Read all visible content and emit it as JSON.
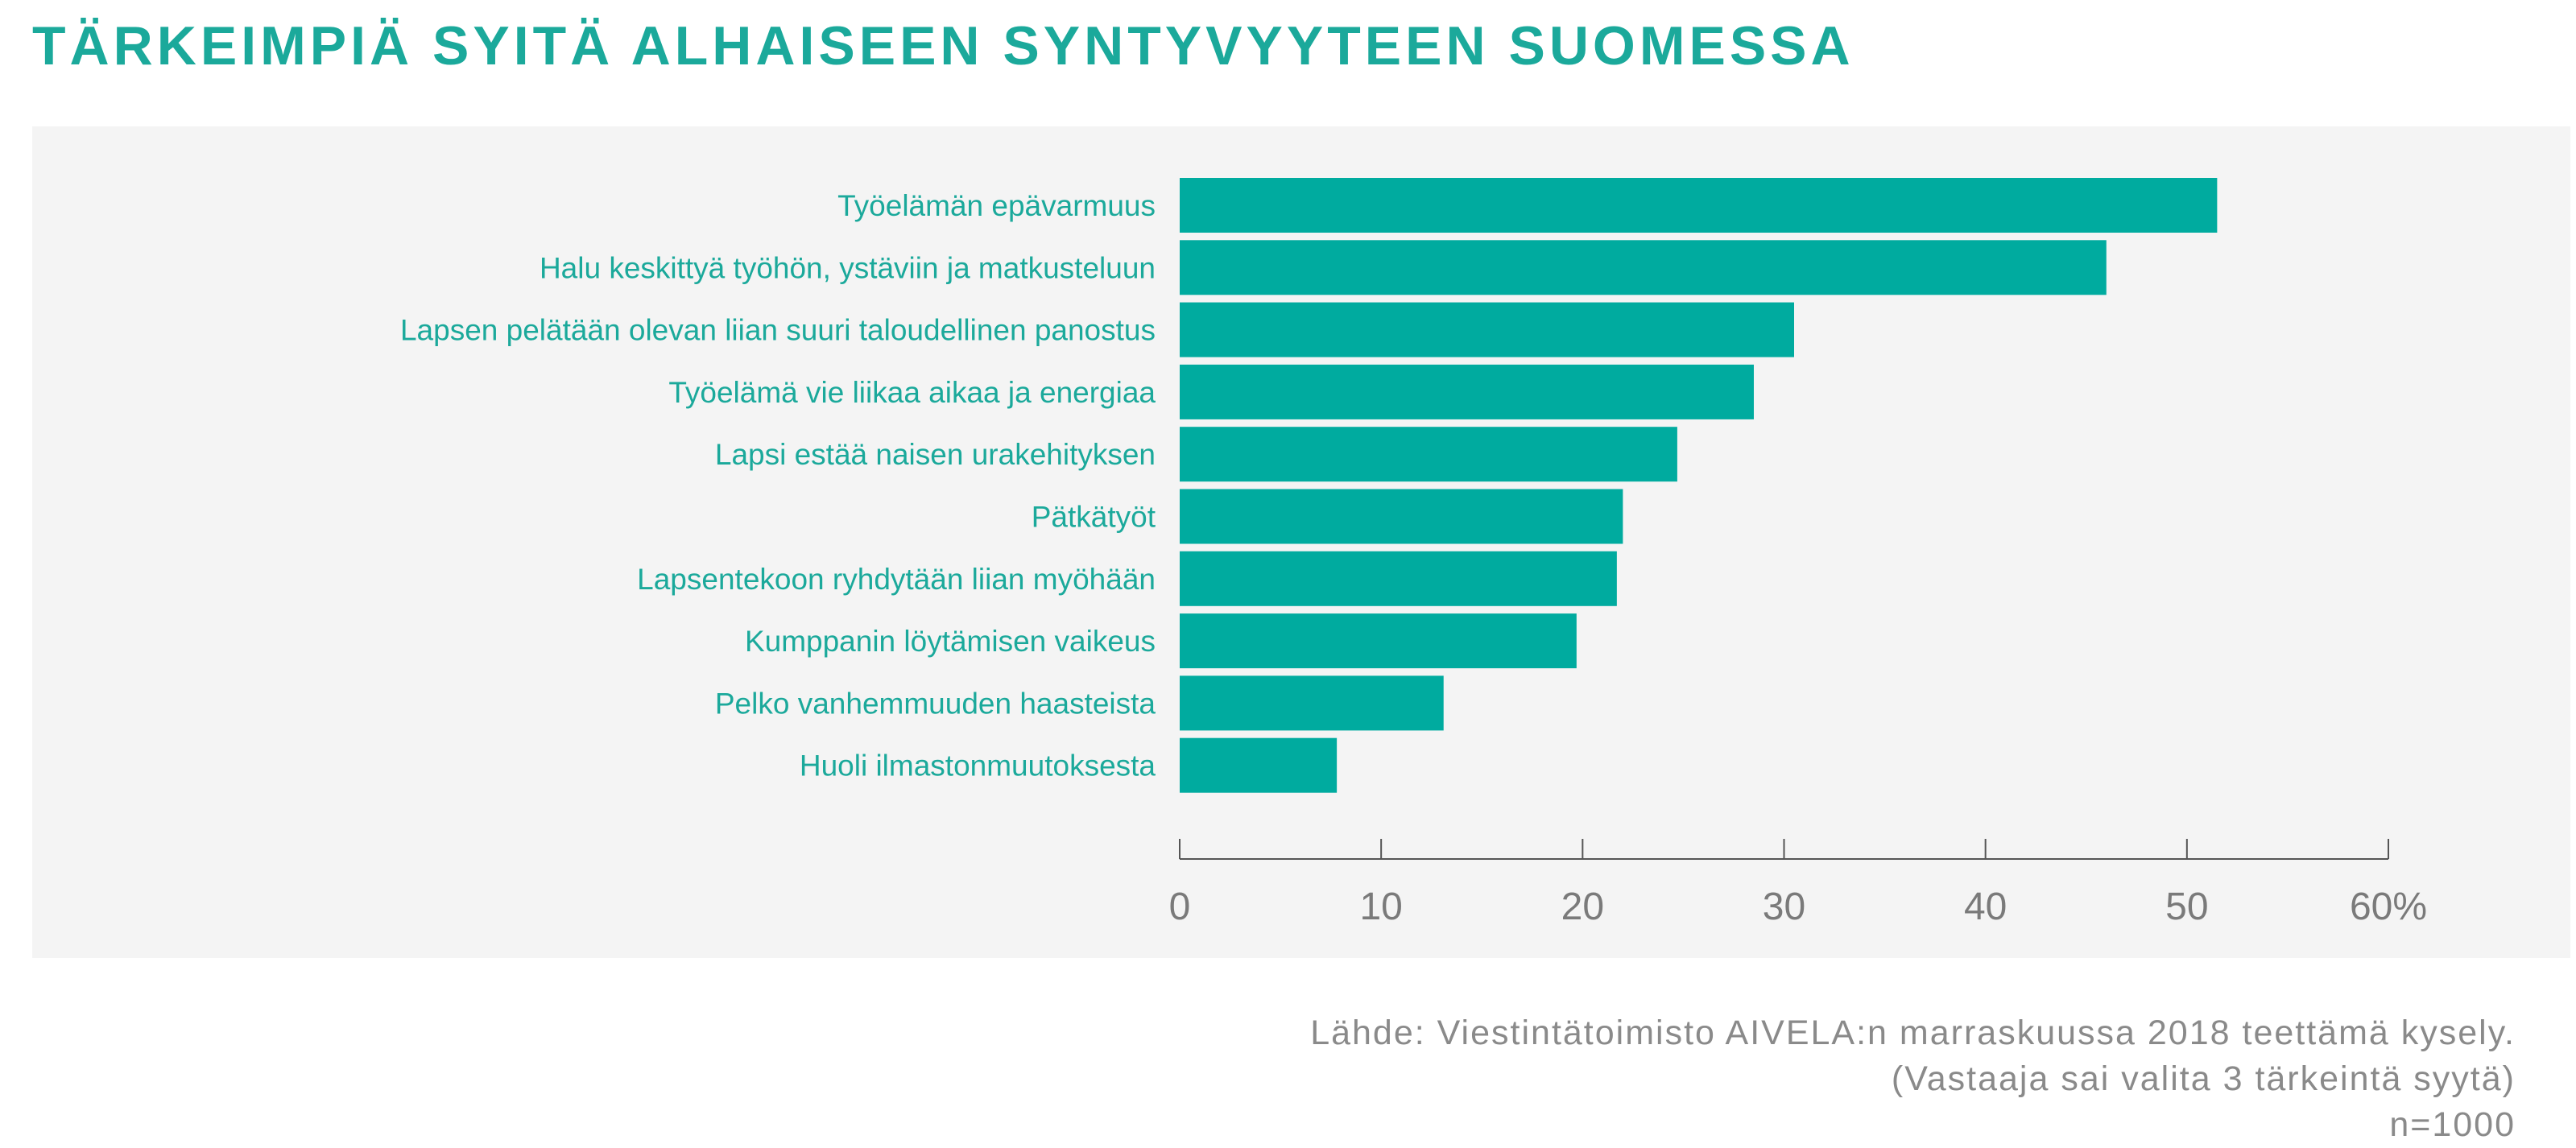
{
  "title": "TÄRKEIMPIÄ SYITÄ ALHAISEEN SYNTYVYYTEEN SUOMESSA",
  "colors": {
    "bar": "#00ab9f",
    "title": "#1ba99b",
    "panel": "#f4f4f4",
    "axis": "#555555"
  },
  "chart_data": {
    "type": "bar",
    "orientation": "horizontal",
    "categories": [
      "Työelämän epävarmuus",
      "Halu keskittyä työhön, ystäviin ja matkusteluun",
      "Lapsen pelätään olevan liian suuri taloudellinen panostus",
      "Työelämä vie liikaa aikaa ja energiaa",
      "Lapsi estää naisen urakehityksen",
      "Pätkätyöt",
      "Lapsentekoon ryhdytään liian myöhään",
      "Kumppanin löytämisen vaikeus",
      "Pelko vanhemmuuden haasteista",
      "Huoli ilmastonmuutoksesta"
    ],
    "values": [
      51.5,
      46,
      30.5,
      28.5,
      24.7,
      22,
      21.7,
      19.7,
      13.1,
      7.8
    ],
    "xlim": [
      0,
      60
    ],
    "xticks": [
      0,
      10,
      20,
      30,
      40,
      50,
      60
    ],
    "xtick_labels": [
      "0",
      "10",
      "20",
      "30",
      "40",
      "50",
      "60%"
    ],
    "grid": false,
    "legend": "none"
  },
  "footer": {
    "source": "Lähde: Viestintätoimisto AIVELA:n marraskuussa 2018 teettämä kysely.",
    "note": "(Vastaaja sai valita 3 tärkeintä syytä)",
    "n": "n=1000"
  }
}
